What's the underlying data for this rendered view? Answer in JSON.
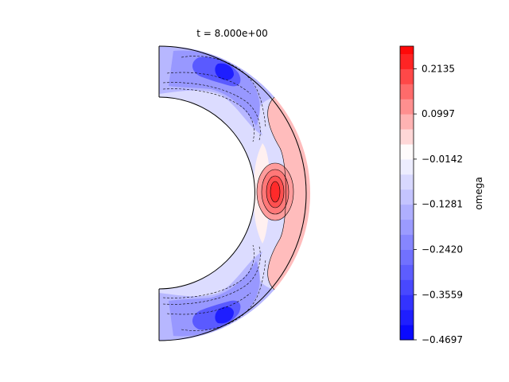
{
  "chart_data": {
    "type": "heatmap",
    "title": "t = 8.000e+00",
    "field_label": "omega",
    "colormap": "bwr",
    "vmin": -0.4697,
    "vmax": 0.2705,
    "colorbar_levels": [
      -0.4697,
      -0.4317,
      -0.3938,
      -0.3559,
      -0.318,
      -0.28,
      -0.242,
      -0.2041,
      -0.1661,
      -0.1281,
      -0.0902,
      -0.0522,
      -0.0142,
      0.0237,
      0.0617,
      0.0997,
      0.1376,
      0.1756,
      0.2135,
      0.2515,
      0.2705
    ],
    "colorbar_ticks": [
      "0.2135",
      "0.0997",
      "−0.0142",
      "−0.1281",
      "−0.2420",
      "−0.3559",
      "−0.4697"
    ],
    "colorbar_tick_values": [
      0.2135,
      0.0997,
      -0.0142,
      -0.1281,
      -0.242,
      -0.3559,
      -0.4697
    ],
    "features": [
      {
        "kind": "positive-core",
        "value": 0.26,
        "theta_deg": 90
      },
      {
        "kind": "negative-core",
        "value": -0.46,
        "theta_deg": 20
      },
      {
        "kind": "negative-core",
        "value": -0.46,
        "theta_deg": 160
      }
    ]
  }
}
